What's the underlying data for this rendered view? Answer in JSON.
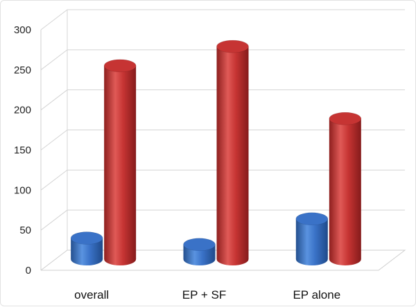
{
  "chart_data": {
    "type": "bar",
    "title": "",
    "xlabel": "",
    "ylabel": "",
    "categories": [
      "overall",
      "EP + SF",
      "EP alone"
    ],
    "series": [
      {
        "color": "#3a72c7",
        "values": [
          35,
          27,
          59
        ]
      },
      {
        "color": "#c63433",
        "values": [
          250,
          274,
          184
        ]
      }
    ],
    "ylim": [
      0,
      300
    ],
    "yticks": [
      "0",
      "50",
      "100",
      "150",
      "200",
      "250",
      "300"
    ],
    "grid": true,
    "legend": "none",
    "style": "3d-cylinder"
  }
}
